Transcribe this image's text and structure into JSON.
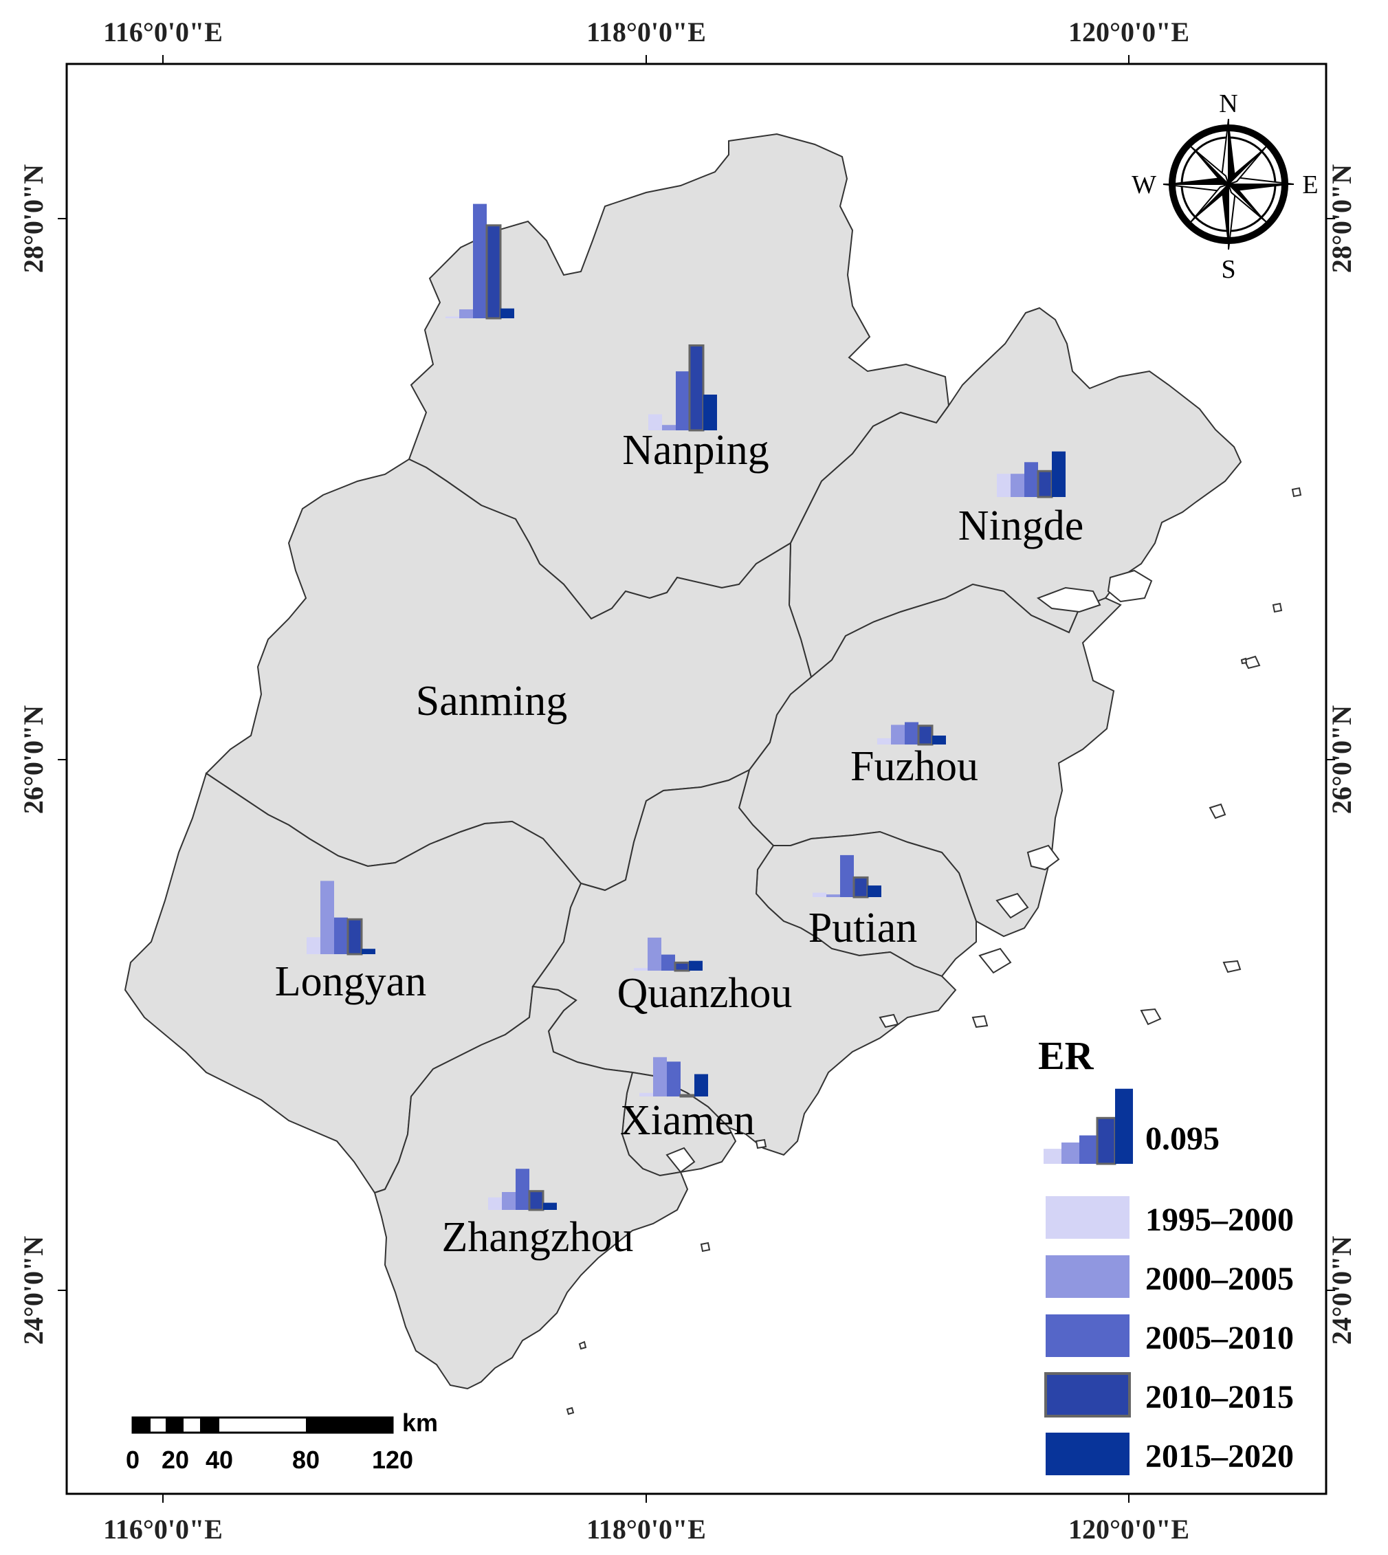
{
  "map": {
    "top_lon_labels": [
      "116°0'0\"E",
      "118°0'0\"E",
      "120°0'0\"E"
    ],
    "bottom_lon_labels": [
      "116°0'0\"E",
      "118°0'0\"E",
      "120°0'0\"E"
    ],
    "left_lat_labels": [
      "28°0'0\"N",
      "26°0'0\"N",
      "24°0'0\"N"
    ],
    "right_lat_labels": [
      "28°0'0\"N",
      "26°0'0\"N",
      "24°0'0\"N"
    ],
    "regions": [
      "Nanping",
      "Ningde",
      "Sanming",
      "Fuzhou",
      "Putian",
      "Longyan",
      "Quanzhou",
      "Xiamen",
      "Zhangzhou"
    ]
  },
  "compass": {
    "n": "N",
    "s": "S",
    "e": "E",
    "w": "W"
  },
  "scale_bar": {
    "unit": "km",
    "ticks": [
      "0",
      "20",
      "40",
      "80",
      "120"
    ]
  },
  "legend": {
    "title": "ER",
    "reference_value": "0.095",
    "periods": [
      "1995–2000",
      "2000–2005",
      "2005–2010",
      "2010–2015",
      "2015–2020"
    ],
    "colors": [
      "#d4d4f6",
      "#9097e0",
      "#5566c8",
      "#2a44a8",
      "#08349a"
    ]
  },
  "chart_data": {
    "type": "bar",
    "title": "ER",
    "categories": [
      "1995–2000",
      "2000–2005",
      "2005–2010",
      "2010–2015",
      "2015–2020"
    ],
    "series": [
      {
        "name": "Nanping",
        "values": [
          0.018,
          0.006,
          0.066,
          0.095,
          0.04
        ]
      },
      {
        "name": "Ningde",
        "values": [
          0.026,
          0.026,
          0.039,
          0.029,
          0.051
        ]
      },
      {
        "name": "Sanming",
        "values": [
          0.002,
          0.01,
          0.128,
          0.104,
          0.011
        ]
      },
      {
        "name": "Fuzhou",
        "values": [
          0.007,
          0.022,
          0.025,
          0.021,
          0.01
        ]
      },
      {
        "name": "Putian",
        "values": [
          0.005,
          0.003,
          0.047,
          0.022,
          0.013
        ]
      },
      {
        "name": "Longyan",
        "values": [
          0.019,
          0.082,
          0.041,
          0.039,
          0.006
        ]
      },
      {
        "name": "Quanzhou",
        "values": [
          0.003,
          0.037,
          0.018,
          0.009,
          0.011
        ]
      },
      {
        "name": "Xiamen",
        "values": [
          0.004,
          0.044,
          0.039,
          0.001,
          0.025
        ]
      },
      {
        "name": "Zhangzhou",
        "values": [
          0.014,
          0.02,
          0.046,
          0.021,
          0.008
        ]
      }
    ]
  }
}
